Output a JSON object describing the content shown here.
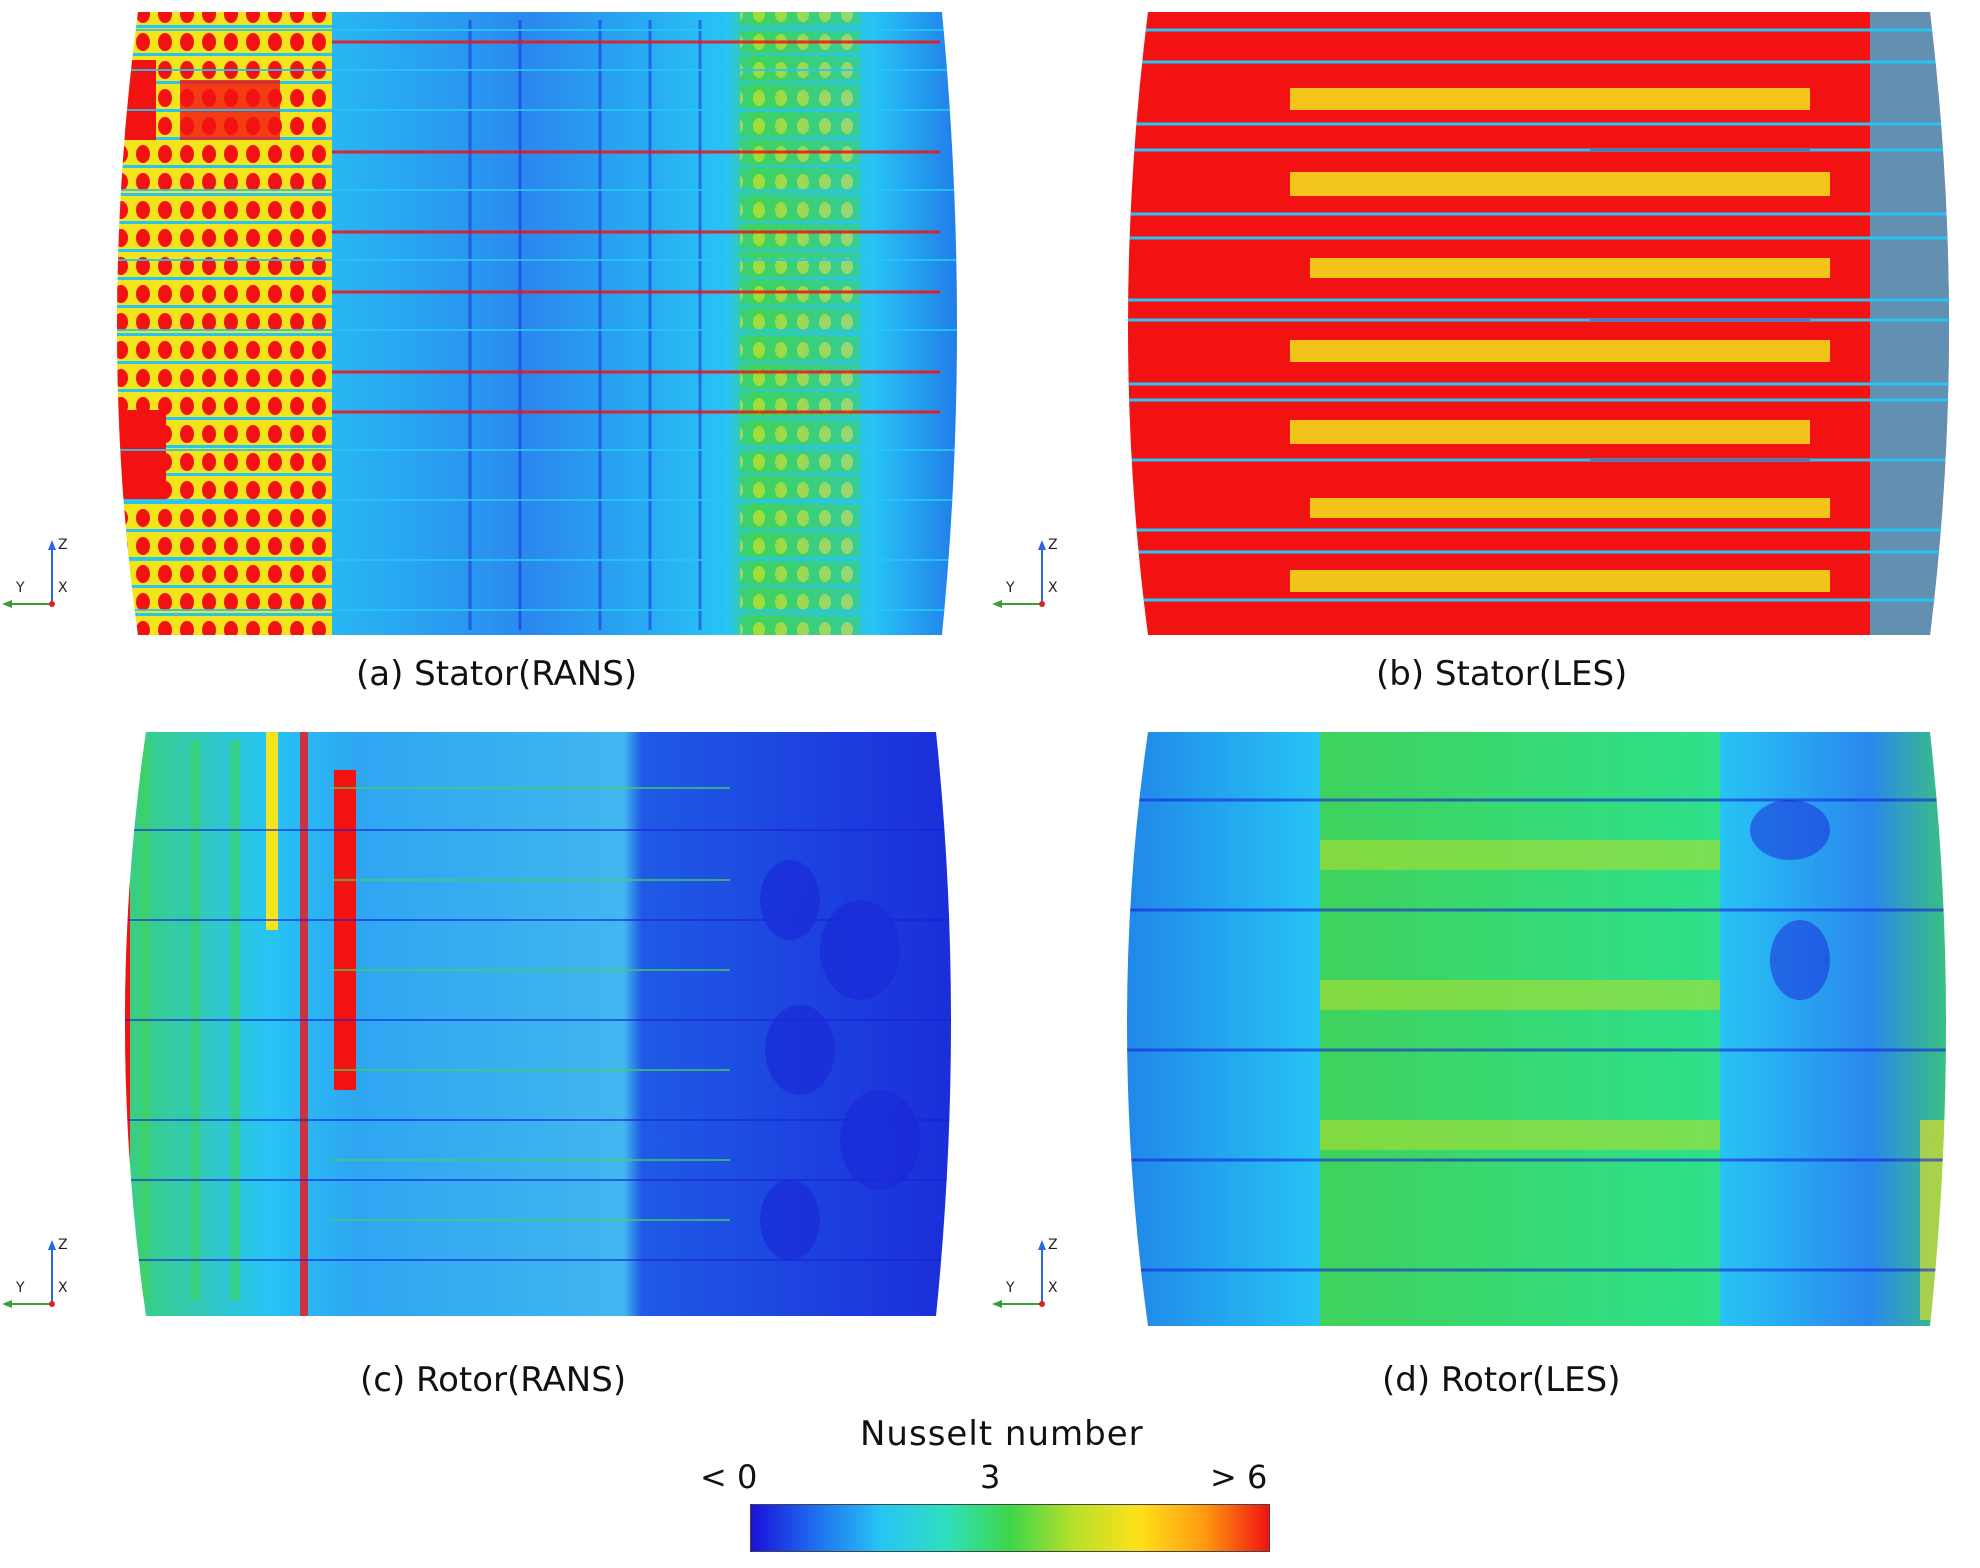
{
  "panels": [
    {
      "id": "a",
      "caption": "(a) Stator(RANS)",
      "axes": {
        "z": "Z",
        "y": "Y",
        "x": "X"
      }
    },
    {
      "id": "b",
      "caption": "(b) Stator(LES)",
      "axes": {
        "z": "Z",
        "y": "Y",
        "x": "X"
      }
    },
    {
      "id": "c",
      "caption": "(c) Rotor(RANS)",
      "axes": {
        "z": "Z",
        "y": "Y",
        "x": "X"
      }
    },
    {
      "id": "d",
      "caption": "(d) Rotor(LES)",
      "axes": {
        "z": "Z",
        "y": "Y",
        "x": "X"
      }
    }
  ],
  "legend": {
    "title": "Nusselt number",
    "min_label": "< 0",
    "mid_label": "3",
    "max_label": "> 6",
    "colormap": [
      "#1a10d8",
      "#1e6ef0",
      "#27c4f5",
      "#2ee0c0",
      "#3ed64a",
      "#b8e02a",
      "#ffe01a",
      "#ff9a10",
      "#f21212"
    ]
  },
  "colors": {
    "red": "#f21212",
    "yellow": "#f3e41c",
    "green": "#3fd25c",
    "cyan": "#27c4f5",
    "blue": "#1f6ae6",
    "darkblue": "#1a22d8"
  }
}
